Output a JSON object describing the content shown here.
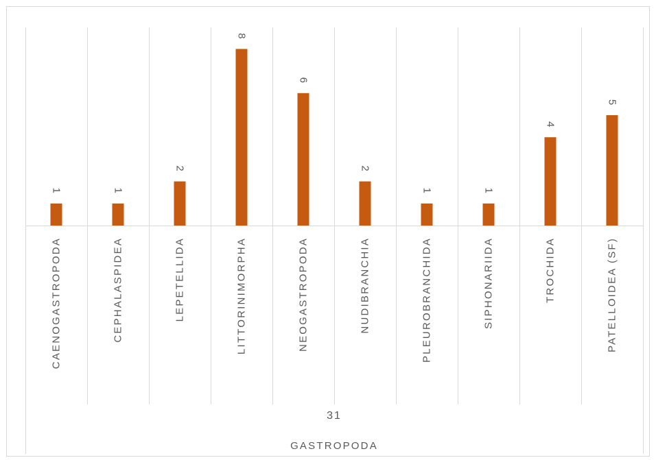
{
  "chart_data": {
    "type": "bar",
    "categories": [
      "CAENOGASTROPODA",
      "CEPHALASPIDEA",
      "LEPETELLIDA",
      "LITTORINIMORPHA",
      "NEOGASTROPODA",
      "NUDIBRANCHIA",
      "PLEUROBRANCHIDA",
      "SIPHONARIIDA",
      "TROCHIDA",
      "PATELLOIDEA (SF)"
    ],
    "values": [
      1,
      1,
      2,
      8,
      6,
      2,
      1,
      1,
      4,
      5
    ],
    "group_total": "31",
    "group_label": "GASTROPODA",
    "ylim": [
      0,
      9
    ],
    "grid": false,
    "legend": "none",
    "bar_color": "#C55A11"
  }
}
